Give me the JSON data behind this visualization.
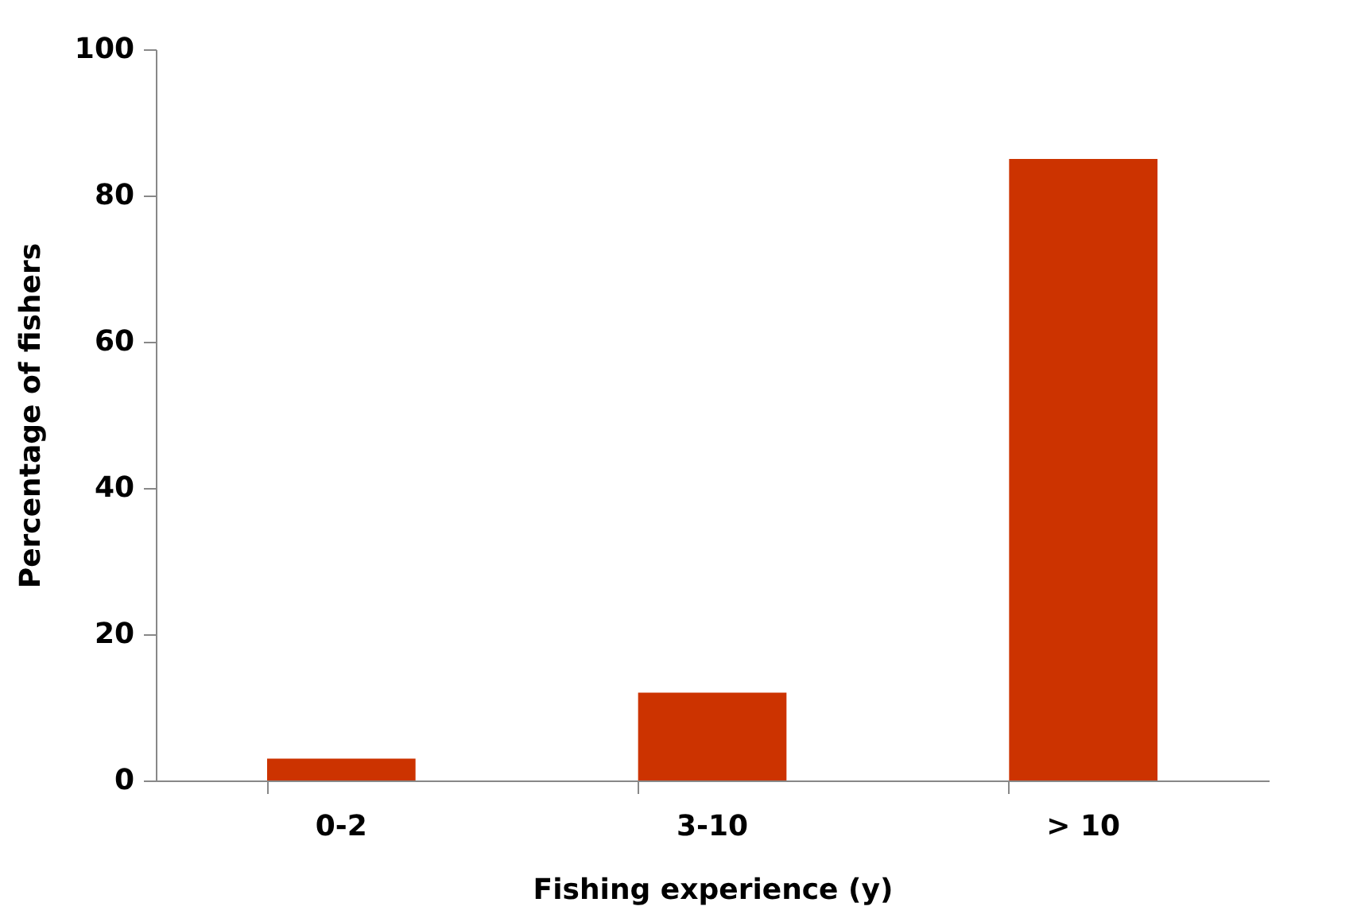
{
  "chart_data": {
    "type": "bar",
    "xlabel": "Fishing experience (y)",
    "ylabel": "Percentage of fishers",
    "categories": [
      "0-2",
      "3-10",
      "> 10"
    ],
    "values": [
      3,
      12,
      85
    ],
    "color": "#cc3300",
    "ylim": [
      0,
      100
    ],
    "yticks": [
      0,
      20,
      40,
      60,
      80,
      100
    ],
    "grid": false
  }
}
